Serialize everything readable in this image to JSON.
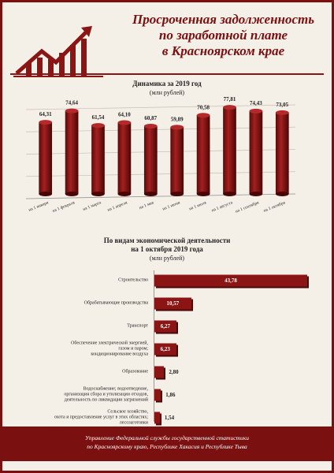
{
  "header": {
    "title_lines": [
      "Просроченная задолженность",
      "по заработной плате",
      "в Красноярском крае"
    ]
  },
  "chart_data": [
    {
      "type": "bar",
      "title": "Динамика за 2019 год",
      "subtitle": "(млн рублей)",
      "categories": [
        "на 1 января",
        "на 1 февраля",
        "на 1 марта",
        "на 1 апреля",
        "на 1 мая",
        "на 1 июня",
        "на 1 июля",
        "на 1 августа",
        "на 1 сентября",
        "на 1 октября"
      ],
      "values": [
        64.31,
        74.64,
        61.54,
        64.1,
        60.87,
        59.89,
        70.58,
        77.81,
        74.43,
        73.05
      ],
      "value_labels": [
        "64,31",
        "74,64",
        "61,54",
        "64,10",
        "60,87",
        "59,89",
        "70,58",
        "77,81",
        "74,43",
        "73,05"
      ],
      "color": "#8b1414",
      "ylim": [
        0,
        80
      ],
      "yticks": [
        0,
        20,
        40,
        60,
        80
      ],
      "grid": true
    },
    {
      "type": "hbar",
      "title": "По видам экономической деятельности\nна 1 октября 2019 года",
      "subtitle": "(млн рублей)",
      "categories": [
        "Строительство",
        "Обрабатывающие производства",
        "Транспорт",
        "Обеспечение электрической энергией,\nгазом и паром;\nкондиционирование воздуха",
        "Образование",
        "Водоснабжение; водоотведение,\nорганизация сбора и утилизации отходов,\nдеятельность по ликвидации загрязнений",
        "Сельское хозяйство,\nохота и предоставление услуг в этих областях;\nлесозаготовки"
      ],
      "values": [
        43.78,
        10.57,
        6.27,
        6.23,
        2.8,
        1.86,
        1.54
      ],
      "value_labels": [
        "43,78",
        "10,57",
        "6,27",
        "6,23",
        "2,80",
        "1,86",
        "1,54"
      ],
      "color": "#8b1414",
      "xlim": [
        0,
        44
      ]
    }
  ],
  "footer": {
    "lines": [
      "Управление Федеральной службы государственной статистики",
      "по Красноярскому краю, Республике Хакасия и Республике Тыва"
    ]
  }
}
